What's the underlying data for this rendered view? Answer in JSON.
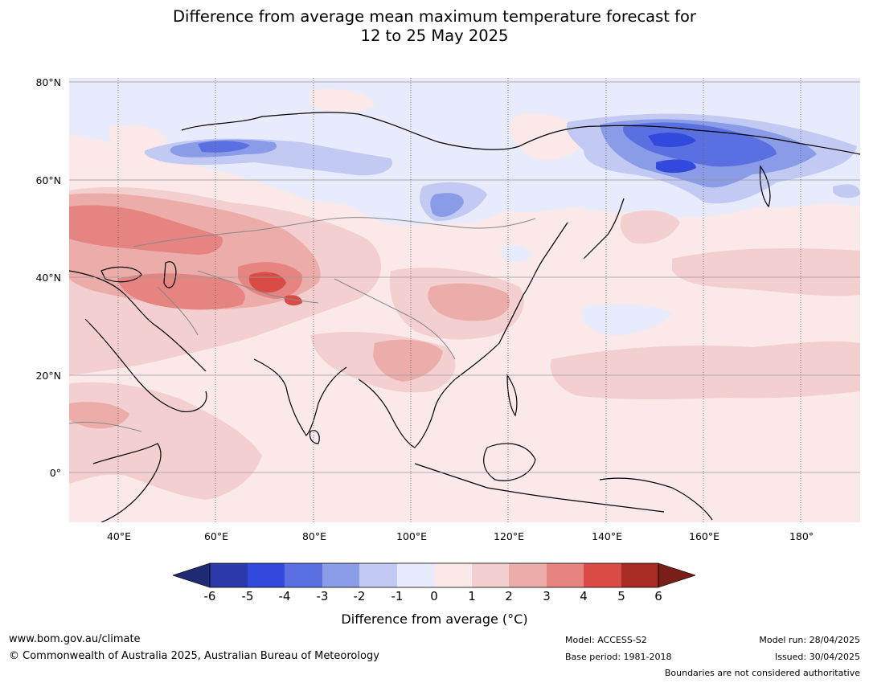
{
  "title_line1": "Difference from average mean maximum temperature forecast for",
  "title_line2": "12 to 25 May 2025",
  "map": {
    "lat_labels": [
      "80°N",
      "60°N",
      "40°N",
      "20°N",
      "0°"
    ],
    "lon_labels": [
      "40°E",
      "60°E",
      "80°E",
      "100°E",
      "120°E",
      "140°E",
      "160°E",
      "180°"
    ],
    "colors": {
      "neg6": "#1f2a73",
      "neg5": "#2a3aa8",
      "neg4": "#3149dc",
      "neg3": "#5b70e0",
      "neg2": "#8a9be8",
      "neg1": "#c2c9f2",
      "neg0": "#e8ebfb",
      "pos0": "#fbe8e8",
      "pos1": "#f4cfcf",
      "pos2": "#ecadaa",
      "pos3": "#e58480",
      "pos4": "#d94c46",
      "pos5": "#a82b24",
      "pos6": "#7a1e1a"
    }
  },
  "colorbar": {
    "ticks": [
      "-6",
      "-5",
      "-4",
      "-3",
      "-2",
      "-1",
      "0",
      "1",
      "2",
      "3",
      "4",
      "5",
      "6"
    ],
    "label": "Difference from average (°C)"
  },
  "footer": {
    "url": "www.bom.gov.au/climate",
    "copyright": "© Commonwealth of Australia 2025, Australian Bureau of Meteorology",
    "model": "Model: ACCESS-S2",
    "base_period": "Base period: 1981-2018",
    "model_run": "Model run: 28/04/2025",
    "issued": "Issued: 30/04/2025",
    "disclaimer": "Boundaries are not considered authoritative"
  }
}
